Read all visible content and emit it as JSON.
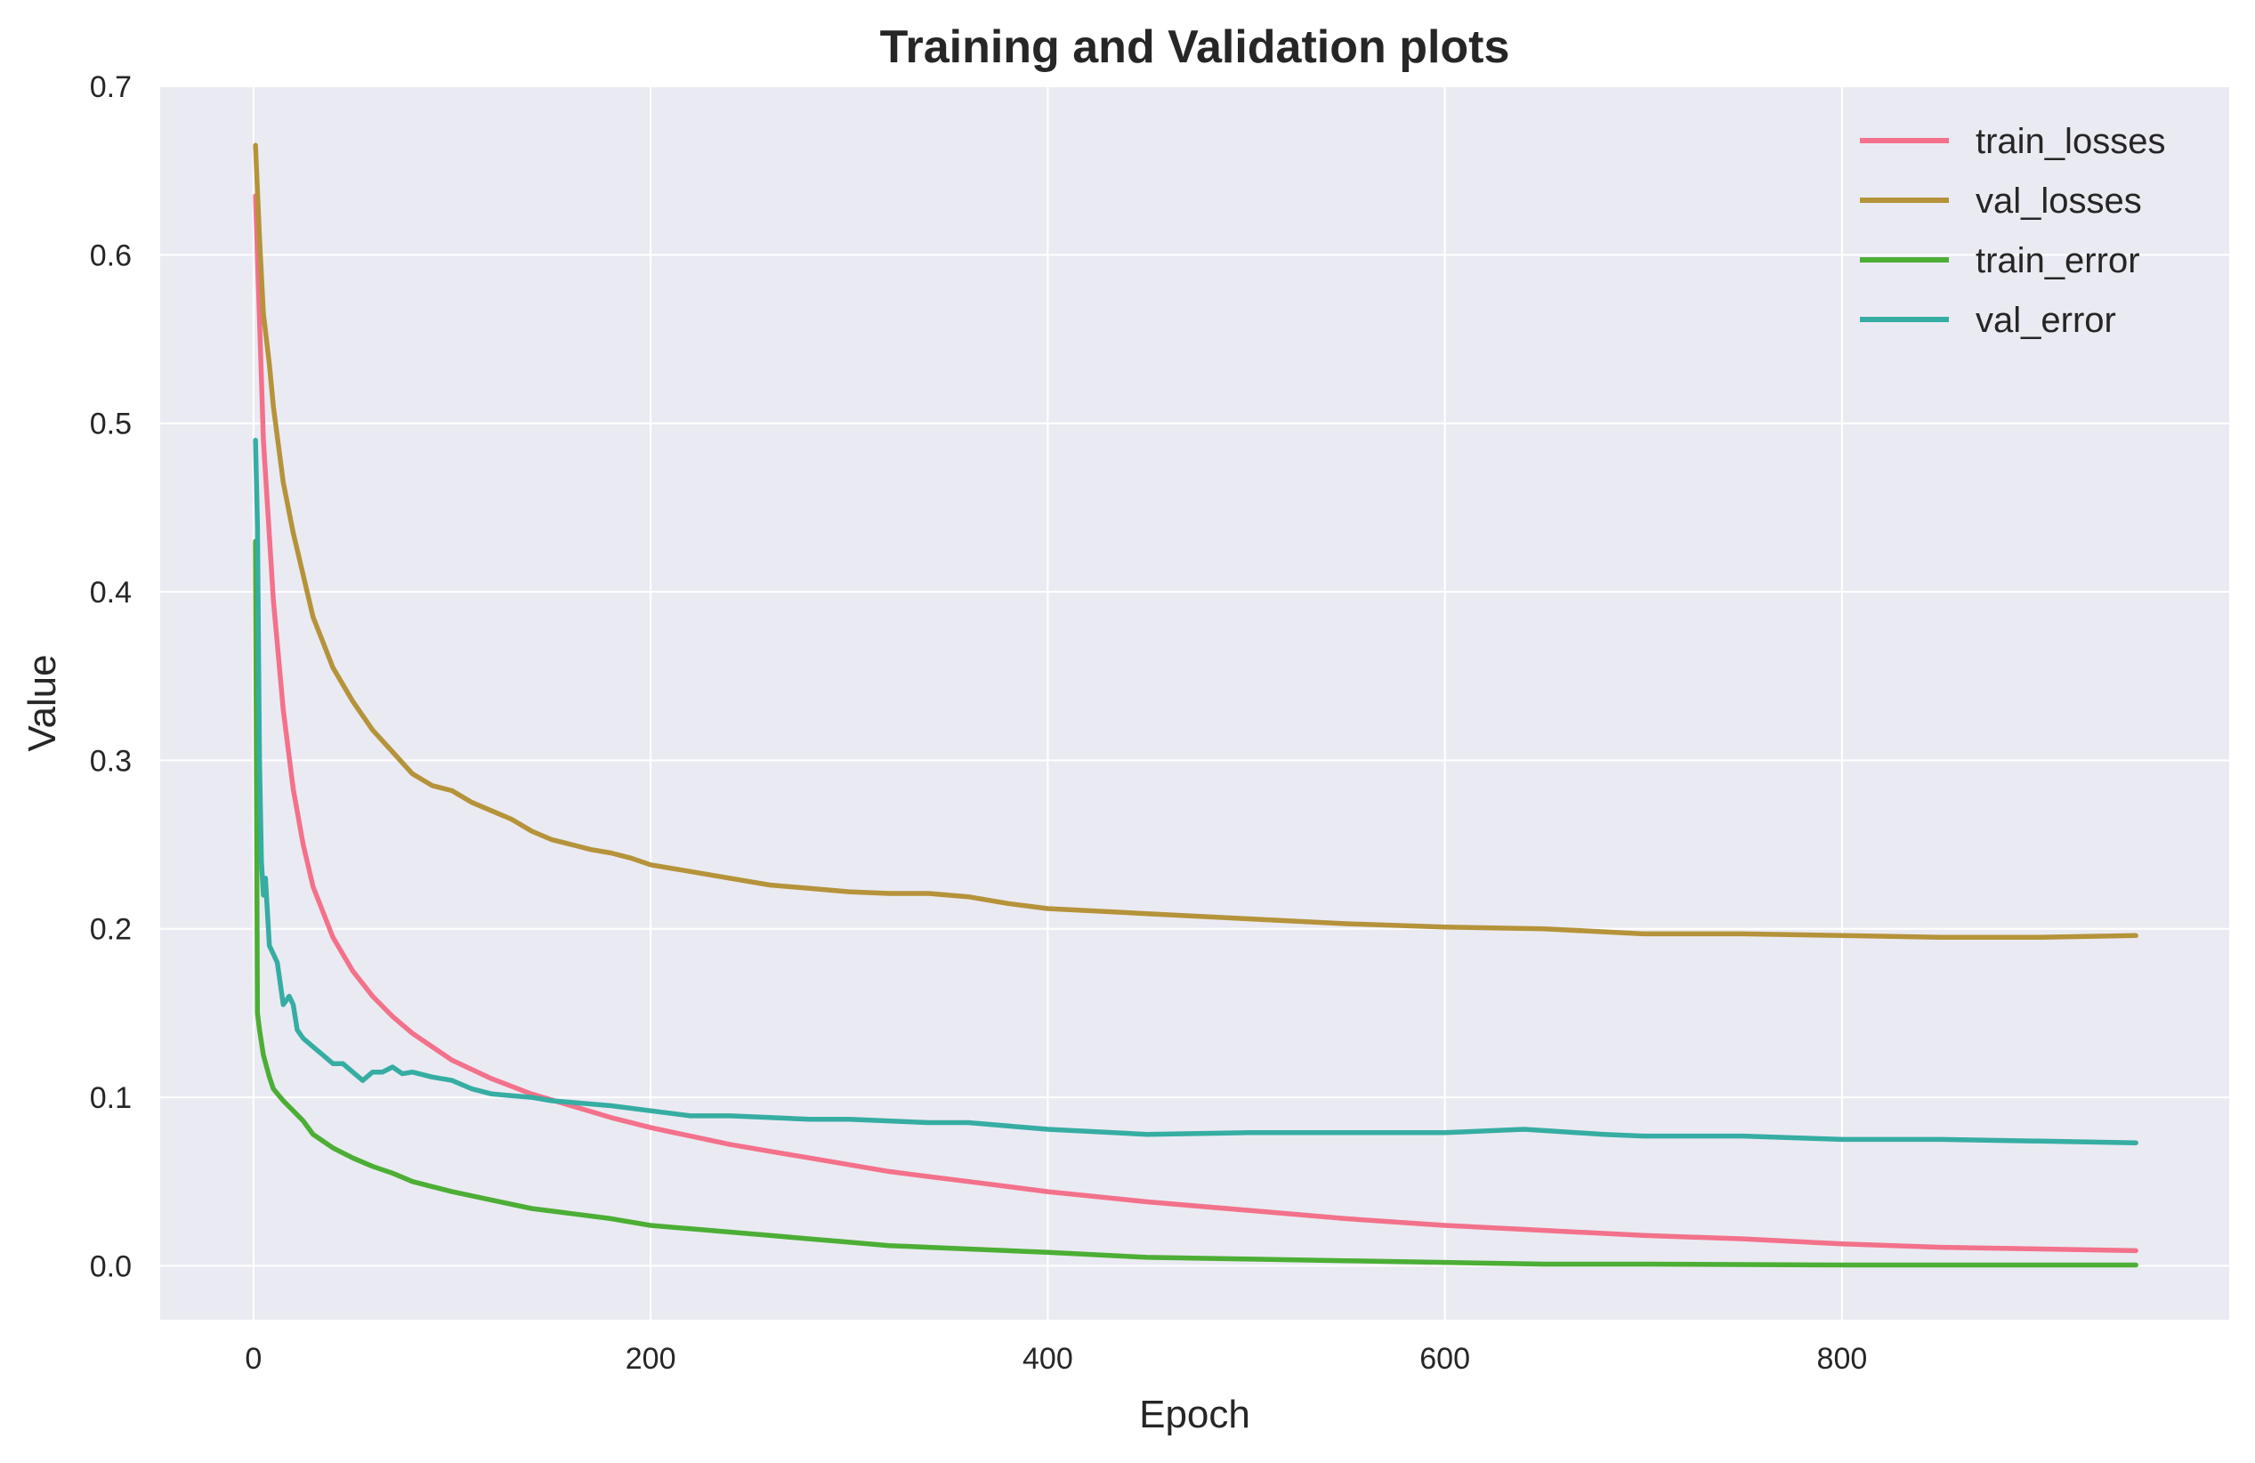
{
  "chart_data": {
    "type": "line",
    "title": "Training and Validation plots",
    "xlabel": "Epoch",
    "ylabel": "Value",
    "xlim": [
      -47,
      995
    ],
    "ylim": [
      -0.032,
      0.7
    ],
    "xticks": [
      0,
      200,
      400,
      600,
      800
    ],
    "yticks": [
      0.0,
      0.1,
      0.2,
      0.3,
      0.4,
      0.5,
      0.6,
      0.7
    ],
    "xtick_labels": [
      "0",
      "200",
      "400",
      "600",
      "800"
    ],
    "ytick_labels": [
      "0.0",
      "0.1",
      "0.2",
      "0.3",
      "0.4",
      "0.5",
      "0.6",
      "0.7"
    ],
    "grid": true,
    "legend_position": "top-right",
    "background_color": "#eaeaf2",
    "grid_color": "#ffffff",
    "series": [
      {
        "name": "train_losses",
        "color": "#f3718a",
        "x": [
          1,
          5,
          10,
          15,
          20,
          25,
          30,
          40,
          50,
          60,
          70,
          80,
          90,
          100,
          120,
          140,
          160,
          180,
          200,
          220,
          240,
          260,
          280,
          300,
          320,
          340,
          360,
          380,
          400,
          450,
          500,
          550,
          600,
          650,
          700,
          750,
          800,
          850,
          900,
          948
        ],
        "y": [
          0.635,
          0.49,
          0.395,
          0.33,
          0.283,
          0.25,
          0.225,
          0.195,
          0.175,
          0.16,
          0.148,
          0.138,
          0.13,
          0.122,
          0.111,
          0.102,
          0.095,
          0.088,
          0.082,
          0.077,
          0.072,
          0.068,
          0.064,
          0.06,
          0.056,
          0.053,
          0.05,
          0.047,
          0.044,
          0.038,
          0.033,
          0.028,
          0.024,
          0.021,
          0.018,
          0.016,
          0.013,
          0.011,
          0.01,
          0.009
        ]
      },
      {
        "name": "val_losses",
        "color": "#b5933a",
        "x": [
          1,
          3,
          5,
          8,
          10,
          15,
          20,
          25,
          30,
          35,
          40,
          50,
          60,
          70,
          80,
          90,
          100,
          110,
          120,
          130,
          140,
          150,
          160,
          170,
          180,
          190,
          200,
          220,
          240,
          260,
          280,
          300,
          320,
          340,
          360,
          380,
          400,
          450,
          500,
          550,
          600,
          650,
          700,
          750,
          800,
          850,
          900,
          948
        ],
        "y": [
          0.665,
          0.61,
          0.565,
          0.535,
          0.51,
          0.465,
          0.435,
          0.41,
          0.385,
          0.37,
          0.355,
          0.335,
          0.318,
          0.305,
          0.292,
          0.285,
          0.282,
          0.275,
          0.27,
          0.265,
          0.258,
          0.253,
          0.25,
          0.247,
          0.245,
          0.242,
          0.238,
          0.234,
          0.23,
          0.226,
          0.224,
          0.222,
          0.221,
          0.221,
          0.219,
          0.215,
          0.212,
          0.209,
          0.206,
          0.203,
          0.201,
          0.2,
          0.197,
          0.197,
          0.196,
          0.195,
          0.195,
          0.196
        ]
      },
      {
        "name": "train_error",
        "color": "#4cae35",
        "x": [
          1,
          2,
          3,
          5,
          8,
          10,
          15,
          20,
          25,
          30,
          40,
          50,
          60,
          70,
          80,
          90,
          100,
          120,
          140,
          160,
          180,
          200,
          220,
          240,
          260,
          280,
          300,
          320,
          340,
          360,
          380,
          400,
          450,
          500,
          550,
          600,
          650,
          700,
          800,
          948
        ],
        "y": [
          0.43,
          0.15,
          0.14,
          0.125,
          0.112,
          0.105,
          0.098,
          0.092,
          0.086,
          0.078,
          0.07,
          0.064,
          0.059,
          0.055,
          0.05,
          0.047,
          0.044,
          0.039,
          0.034,
          0.031,
          0.028,
          0.024,
          0.022,
          0.02,
          0.018,
          0.016,
          0.014,
          0.012,
          0.011,
          0.01,
          0.009,
          0.008,
          0.005,
          0.004,
          0.003,
          0.002,
          0.001,
          0.001,
          0.0005,
          0.0005
        ]
      },
      {
        "name": "val_error",
        "color": "#36ada3",
        "x": [
          1,
          2,
          3,
          4,
          5,
          6,
          7,
          8,
          10,
          12,
          15,
          18,
          20,
          22,
          25,
          30,
          35,
          40,
          45,
          50,
          55,
          60,
          65,
          70,
          75,
          80,
          90,
          100,
          110,
          120,
          130,
          140,
          150,
          160,
          180,
          200,
          220,
          240,
          260,
          280,
          300,
          320,
          340,
          360,
          380,
          400,
          450,
          500,
          550,
          600,
          640,
          680,
          700,
          750,
          800,
          850,
          900,
          948
        ],
        "y": [
          0.49,
          0.44,
          0.3,
          0.24,
          0.22,
          0.23,
          0.21,
          0.19,
          0.185,
          0.18,
          0.155,
          0.16,
          0.155,
          0.14,
          0.135,
          0.13,
          0.125,
          0.12,
          0.12,
          0.115,
          0.11,
          0.115,
          0.115,
          0.118,
          0.114,
          0.115,
          0.112,
          0.11,
          0.105,
          0.102,
          0.101,
          0.1,
          0.098,
          0.097,
          0.095,
          0.092,
          0.089,
          0.089,
          0.088,
          0.087,
          0.087,
          0.086,
          0.085,
          0.085,
          0.083,
          0.081,
          0.078,
          0.079,
          0.079,
          0.079,
          0.081,
          0.078,
          0.077,
          0.077,
          0.075,
          0.075,
          0.074,
          0.073
        ]
      }
    ]
  }
}
